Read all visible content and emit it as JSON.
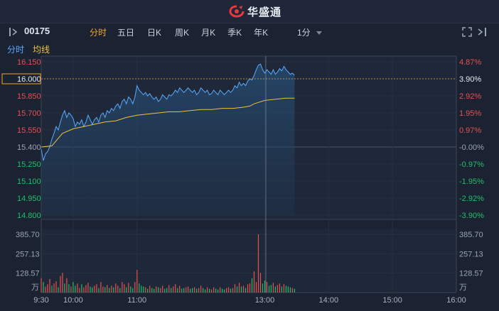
{
  "header": {
    "brand": "华盛通"
  },
  "toolbar": {
    "stock_code": "00175",
    "tabs": [
      {
        "label": "分时",
        "active": true
      },
      {
        "label": "五日",
        "active": false
      },
      {
        "label": "日K",
        "active": false
      },
      {
        "label": "周K",
        "active": false
      },
      {
        "label": "月K",
        "active": false
      },
      {
        "label": "季K",
        "active": false
      },
      {
        "label": "年K",
        "active": false
      }
    ],
    "interval": "1分"
  },
  "legend": {
    "time_share": "分时",
    "avg_line": "均线"
  },
  "colors": {
    "price_line": "#5aa8ff",
    "avg_line": "#f0c040",
    "up": "#e84f4f",
    "down": "#1fbf6a",
    "highlight": "#f0a429"
  },
  "chart_data": {
    "type": "line",
    "prev_close": 15.4,
    "price_ticks": [
      "16.150",
      "16.000",
      "15.850",
      "15.700",
      "15.550",
      "15.400",
      "15.250",
      "15.100",
      "14.950",
      "14.800"
    ],
    "pct_ticks": [
      "4.87%",
      "3.90%",
      "2.92%",
      "1.95%",
      "0.97%",
      "-0.00%",
      "-0.97%",
      "-1.95%",
      "-2.92%",
      "-3.90%"
    ],
    "ylim": [
      14.8,
      16.15
    ],
    "current_price_label": "16.000",
    "current_pct_label": "3.90%",
    "x_ticks": [
      "9:30",
      "10:00",
      "11:00",
      "13:00",
      "14:00",
      "15:00",
      "16:00"
    ],
    "volume_ticks": [
      "385.70",
      "257.13",
      "128.57"
    ],
    "volume_unit": "万",
    "volume_ylim": [
      0,
      385.7
    ],
    "series": [
      {
        "kind": "price",
        "points": [
          [
            0,
            15.38
          ],
          [
            2,
            15.28
          ],
          [
            4,
            15.34
          ],
          [
            6,
            15.36
          ],
          [
            8,
            15.4
          ],
          [
            10,
            15.47
          ],
          [
            12,
            15.52
          ],
          [
            14,
            15.58
          ],
          [
            16,
            15.55
          ],
          [
            18,
            15.62
          ],
          [
            20,
            15.68
          ],
          [
            22,
            15.72
          ],
          [
            24,
            15.66
          ],
          [
            26,
            15.7
          ],
          [
            28,
            15.68
          ],
          [
            30,
            15.65
          ],
          [
            32,
            15.58
          ],
          [
            34,
            15.62
          ],
          [
            36,
            15.6
          ],
          [
            38,
            15.64
          ],
          [
            40,
            15.58
          ],
          [
            42,
            15.62
          ],
          [
            44,
            15.68
          ],
          [
            46,
            15.64
          ],
          [
            48,
            15.6
          ],
          [
            50,
            15.64
          ],
          [
            52,
            15.66
          ],
          [
            54,
            15.62
          ],
          [
            56,
            15.68
          ],
          [
            58,
            15.7
          ],
          [
            60,
            15.66
          ],
          [
            62,
            15.72
          ],
          [
            64,
            15.7
          ],
          [
            66,
            15.74
          ],
          [
            68,
            15.72
          ],
          [
            70,
            15.76
          ],
          [
            72,
            15.78
          ],
          [
            74,
            15.74
          ],
          [
            76,
            15.8
          ],
          [
            78,
            15.82
          ],
          [
            80,
            15.78
          ],
          [
            82,
            15.84
          ],
          [
            84,
            15.82
          ],
          [
            86,
            15.78
          ],
          [
            88,
            15.84
          ],
          [
            90,
            15.94
          ],
          [
            92,
            15.9
          ],
          [
            94,
            15.88
          ],
          [
            96,
            15.86
          ],
          [
            98,
            15.88
          ],
          [
            100,
            15.85
          ],
          [
            102,
            15.87
          ],
          [
            104,
            15.84
          ],
          [
            106,
            15.82
          ],
          [
            108,
            15.84
          ],
          [
            110,
            15.8
          ],
          [
            112,
            15.82
          ],
          [
            114,
            15.86
          ],
          [
            116,
            15.84
          ],
          [
            118,
            15.82
          ],
          [
            120,
            15.86
          ],
          [
            122,
            15.85
          ],
          [
            124,
            15.87
          ],
          [
            126,
            15.9
          ],
          [
            128,
            15.88
          ],
          [
            130,
            15.92
          ],
          [
            132,
            15.9
          ],
          [
            134,
            15.88
          ],
          [
            136,
            15.9
          ],
          [
            138,
            15.92
          ],
          [
            140,
            15.9
          ],
          [
            142,
            15.88
          ],
          [
            144,
            15.9
          ],
          [
            146,
            15.86
          ],
          [
            148,
            15.88
          ],
          [
            150,
            15.92
          ],
          [
            152,
            15.9
          ],
          [
            154,
            15.88
          ],
          [
            156,
            15.9
          ],
          [
            158,
            15.86
          ],
          [
            160,
            15.87
          ],
          [
            162,
            15.9
          ],
          [
            164,
            15.88
          ],
          [
            166,
            15.86
          ],
          [
            168,
            15.9
          ],
          [
            170,
            15.88
          ],
          [
            172,
            15.86
          ],
          [
            174,
            15.88
          ],
          [
            176,
            15.9
          ],
          [
            178,
            15.88
          ],
          [
            180,
            15.9
          ],
          [
            182,
            15.94
          ],
          [
            184,
            15.92
          ],
          [
            186,
            15.97
          ],
          [
            188,
            15.94
          ],
          [
            190,
            15.96
          ],
          [
            192,
            15.94
          ],
          [
            194,
            15.98
          ],
          [
            196,
            16.0
          ],
          [
            198,
            15.99
          ],
          [
            200,
            16.03
          ],
          [
            202,
            16.08
          ],
          [
            204,
            16.12
          ],
          [
            206,
            16.13
          ],
          [
            208,
            16.08
          ],
          [
            210,
            16.05
          ],
          [
            212,
            16.08
          ],
          [
            214,
            16.06
          ],
          [
            216,
            16.04
          ],
          [
            218,
            16.08
          ],
          [
            220,
            16.04
          ],
          [
            222,
            16.06
          ],
          [
            224,
            16.09
          ],
          [
            226,
            16.07
          ],
          [
            228,
            16.11
          ],
          [
            230,
            16.08
          ],
          [
            232,
            16.06
          ],
          [
            234,
            16.04
          ],
          [
            236,
            16.05
          ],
          [
            238,
            16.03
          ]
        ]
      },
      {
        "kind": "avg",
        "points": [
          [
            0,
            15.4
          ],
          [
            10,
            15.41
          ],
          [
            20,
            15.52
          ],
          [
            30,
            15.56
          ],
          [
            40,
            15.58
          ],
          [
            50,
            15.6
          ],
          [
            60,
            15.62
          ],
          [
            70,
            15.63
          ],
          [
            80,
            15.66
          ],
          [
            90,
            15.68
          ],
          [
            100,
            15.69
          ],
          [
            110,
            15.7
          ],
          [
            120,
            15.71
          ],
          [
            130,
            15.71
          ],
          [
            140,
            15.72
          ],
          [
            150,
            15.73
          ],
          [
            160,
            15.73
          ],
          [
            170,
            15.74
          ],
          [
            180,
            15.74
          ],
          [
            190,
            15.75
          ],
          [
            196,
            15.76
          ],
          [
            200,
            15.78
          ],
          [
            210,
            15.81
          ],
          [
            220,
            15.82
          ],
          [
            230,
            15.83
          ],
          [
            238,
            15.83
          ]
        ]
      }
    ],
    "volume": [
      [
        0,
        95,
        "up"
      ],
      [
        2,
        70,
        "down"
      ],
      [
        4,
        40,
        "up"
      ],
      [
        6,
        55,
        "up"
      ],
      [
        8,
        90,
        "up"
      ],
      [
        10,
        45,
        "down"
      ],
      [
        12,
        60,
        "up"
      ],
      [
        14,
        75,
        "up"
      ],
      [
        16,
        35,
        "down"
      ],
      [
        18,
        110,
        "up"
      ],
      [
        20,
        130,
        "up"
      ],
      [
        22,
        60,
        "down"
      ],
      [
        24,
        95,
        "up"
      ],
      [
        26,
        55,
        "down"
      ],
      [
        28,
        40,
        "up"
      ],
      [
        30,
        70,
        "down"
      ],
      [
        32,
        45,
        "down"
      ],
      [
        34,
        60,
        "up"
      ],
      [
        36,
        30,
        "up"
      ],
      [
        38,
        55,
        "down"
      ],
      [
        40,
        35,
        "up"
      ],
      [
        42,
        50,
        "up"
      ],
      [
        44,
        65,
        "up"
      ],
      [
        46,
        40,
        "down"
      ],
      [
        48,
        35,
        "down"
      ],
      [
        50,
        45,
        "up"
      ],
      [
        52,
        55,
        "up"
      ],
      [
        54,
        30,
        "down"
      ],
      [
        56,
        70,
        "up"
      ],
      [
        58,
        40,
        "up"
      ],
      [
        60,
        35,
        "down"
      ],
      [
        62,
        50,
        "up"
      ],
      [
        64,
        30,
        "down"
      ],
      [
        66,
        45,
        "up"
      ],
      [
        68,
        35,
        "down"
      ],
      [
        70,
        60,
        "up"
      ],
      [
        72,
        45,
        "up"
      ],
      [
        74,
        30,
        "down"
      ],
      [
        76,
        70,
        "up"
      ],
      [
        78,
        55,
        "up"
      ],
      [
        80,
        35,
        "down"
      ],
      [
        82,
        65,
        "up"
      ],
      [
        84,
        40,
        "down"
      ],
      [
        86,
        30,
        "down"
      ],
      [
        88,
        70,
        "up"
      ],
      [
        90,
        150,
        "up"
      ],
      [
        92,
        60,
        "down"
      ],
      [
        94,
        45,
        "down"
      ],
      [
        96,
        40,
        "down"
      ],
      [
        98,
        35,
        "up"
      ],
      [
        100,
        25,
        "down"
      ],
      [
        102,
        45,
        "up"
      ],
      [
        104,
        30,
        "down"
      ],
      [
        106,
        25,
        "down"
      ],
      [
        108,
        40,
        "up"
      ],
      [
        110,
        35,
        "down"
      ],
      [
        112,
        30,
        "up"
      ],
      [
        114,
        45,
        "up"
      ],
      [
        116,
        25,
        "down"
      ],
      [
        118,
        30,
        "down"
      ],
      [
        120,
        50,
        "up"
      ],
      [
        122,
        30,
        "down"
      ],
      [
        124,
        40,
        "up"
      ],
      [
        126,
        55,
        "up"
      ],
      [
        128,
        30,
        "down"
      ],
      [
        130,
        45,
        "up"
      ],
      [
        132,
        25,
        "down"
      ],
      [
        134,
        30,
        "down"
      ],
      [
        136,
        35,
        "up"
      ],
      [
        138,
        40,
        "up"
      ],
      [
        140,
        25,
        "down"
      ],
      [
        142,
        30,
        "down"
      ],
      [
        144,
        35,
        "up"
      ],
      [
        146,
        25,
        "down"
      ],
      [
        148,
        30,
        "up"
      ],
      [
        150,
        45,
        "up"
      ],
      [
        152,
        30,
        "down"
      ],
      [
        154,
        20,
        "down"
      ],
      [
        156,
        35,
        "up"
      ],
      [
        158,
        25,
        "down"
      ],
      [
        160,
        20,
        "up"
      ],
      [
        162,
        35,
        "up"
      ],
      [
        164,
        25,
        "down"
      ],
      [
        166,
        20,
        "down"
      ],
      [
        168,
        35,
        "up"
      ],
      [
        170,
        25,
        "down"
      ],
      [
        172,
        20,
        "down"
      ],
      [
        174,
        30,
        "up"
      ],
      [
        176,
        35,
        "up"
      ],
      [
        178,
        25,
        "down"
      ],
      [
        180,
        30,
        "up"
      ],
      [
        182,
        55,
        "up"
      ],
      [
        184,
        40,
        "down"
      ],
      [
        186,
        65,
        "up"
      ],
      [
        188,
        40,
        "down"
      ],
      [
        190,
        45,
        "up"
      ],
      [
        192,
        30,
        "down"
      ],
      [
        194,
        55,
        "up"
      ],
      [
        196,
        60,
        "up"
      ],
      [
        198,
        95,
        "down"
      ],
      [
        200,
        140,
        "up"
      ],
      [
        202,
        70,
        "up"
      ],
      [
        204,
        385,
        "up"
      ],
      [
        206,
        130,
        "up"
      ],
      [
        208,
        60,
        "down"
      ],
      [
        210,
        80,
        "down"
      ],
      [
        212,
        70,
        "up"
      ],
      [
        214,
        45,
        "down"
      ],
      [
        216,
        50,
        "down"
      ],
      [
        218,
        65,
        "up"
      ],
      [
        220,
        40,
        "down"
      ],
      [
        222,
        50,
        "up"
      ],
      [
        224,
        60,
        "up"
      ],
      [
        226,
        40,
        "down"
      ],
      [
        228,
        55,
        "up"
      ],
      [
        230,
        45,
        "down"
      ],
      [
        232,
        40,
        "down"
      ],
      [
        234,
        35,
        "down"
      ],
      [
        236,
        30,
        "up"
      ],
      [
        238,
        25,
        "down"
      ]
    ]
  }
}
